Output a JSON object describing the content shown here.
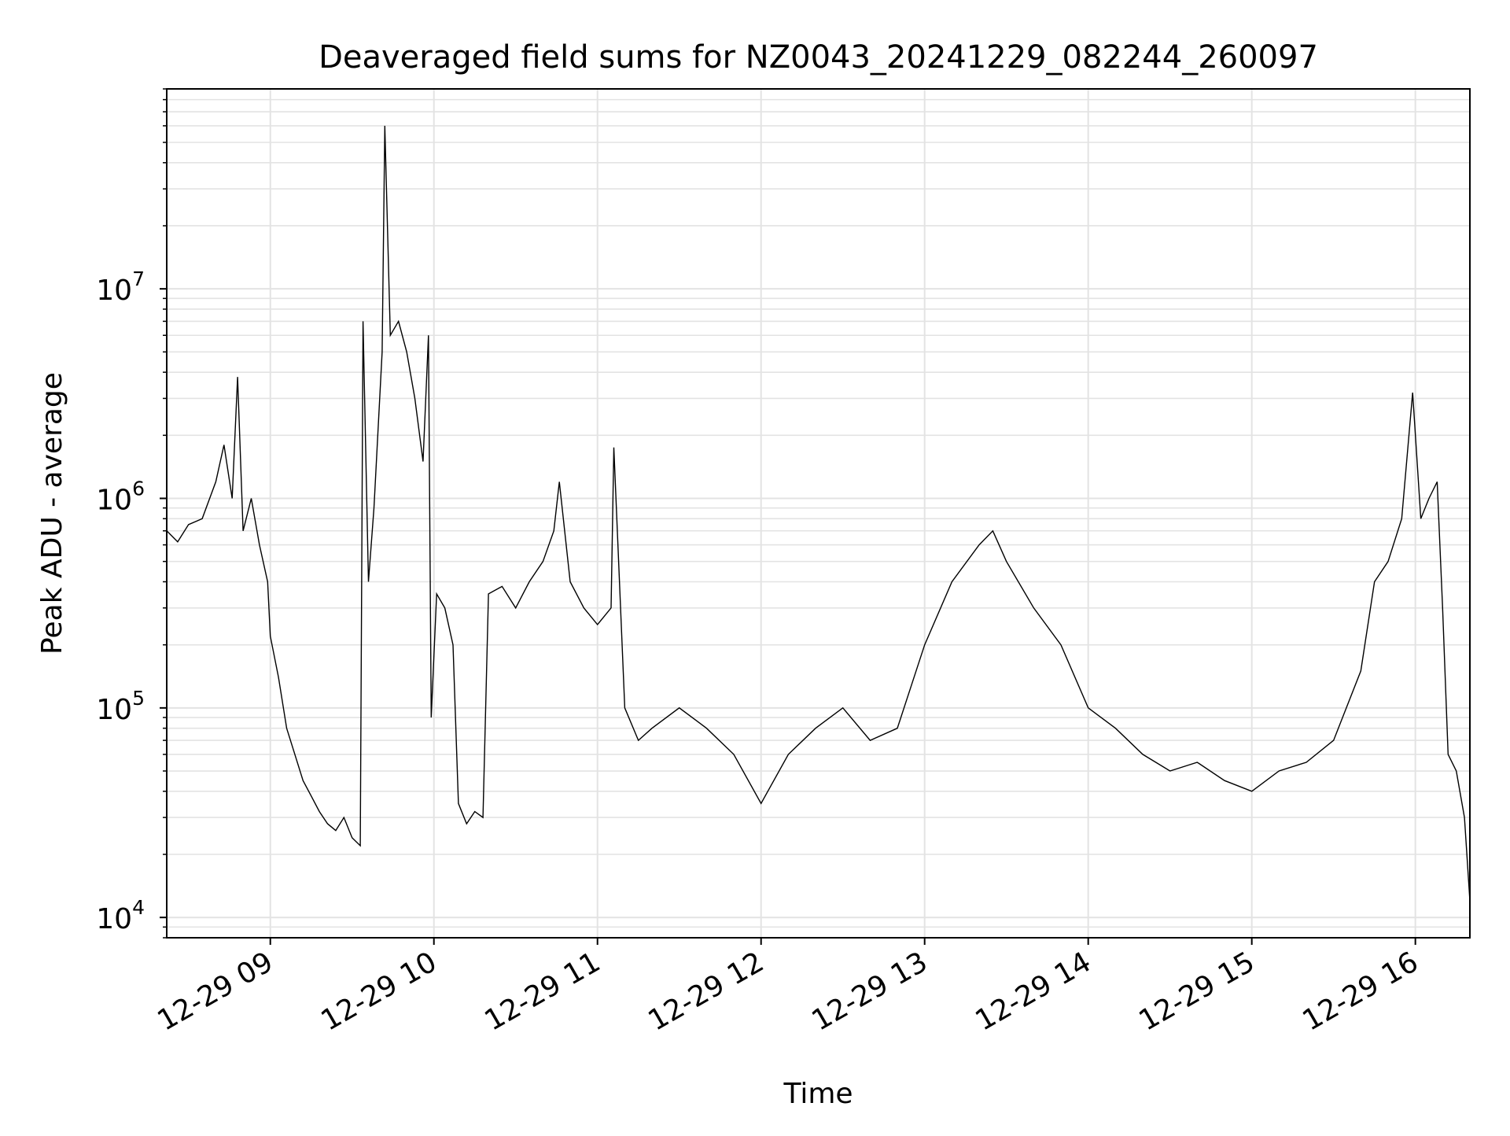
{
  "chart_data": {
    "type": "line",
    "title": "Deaveraged field sums for NZ0043_20241229_082244_260097",
    "xlabel": "Time",
    "ylabel": "Peak ADU - average",
    "y_scale": "log",
    "ylim": [
      8000,
      90000000
    ],
    "xlim": [
      "2024-12-29 08:22",
      "2024-12-29 16:20"
    ],
    "grid": "on (major and minor)",
    "line_color": "#000000",
    "grid_color": "#e3e3e3",
    "x_tick_labels": [
      "12-29 09",
      "12-29 10",
      "12-29 11",
      "12-29 12",
      "12-29 13",
      "12-29 14",
      "12-29 15",
      "12-29 16"
    ],
    "y_tick_labels": [
      {
        "base": "10",
        "exp": "4"
      },
      {
        "base": "10",
        "exp": "5"
      },
      {
        "base": "10",
        "exp": "6"
      },
      {
        "base": "10",
        "exp": "7"
      }
    ],
    "series": [
      {
        "values_description_note": null,
        "points": [
          [
            "2024-12-29 08:22",
            700000
          ],
          [
            "2024-12-29 08:26",
            620000
          ],
          [
            "2024-12-29 08:30",
            750000
          ],
          [
            "2024-12-29 08:35",
            800000
          ],
          [
            "2024-12-29 08:40",
            1200000
          ],
          [
            "2024-12-29 08:43",
            1800000
          ],
          [
            "2024-12-29 08:46",
            1000000
          ],
          [
            "2024-12-29 08:48",
            3800000
          ],
          [
            "2024-12-29 08:50",
            700000
          ],
          [
            "2024-12-29 08:53",
            1000000
          ],
          [
            "2024-12-29 08:56",
            600000
          ],
          [
            "2024-12-29 08:59",
            400000
          ],
          [
            "2024-12-29 09:00",
            220000
          ],
          [
            "2024-12-29 09:03",
            140000
          ],
          [
            "2024-12-29 09:06",
            80000
          ],
          [
            "2024-12-29 09:09",
            60000
          ],
          [
            "2024-12-29 09:12",
            45000
          ],
          [
            "2024-12-29 09:15",
            38000
          ],
          [
            "2024-12-29 09:18",
            32000
          ],
          [
            "2024-12-29 09:21",
            28000
          ],
          [
            "2024-12-29 09:24",
            26000
          ],
          [
            "2024-12-29 09:27",
            30000
          ],
          [
            "2024-12-29 09:30",
            24000
          ],
          [
            "2024-12-29 09:33",
            22000
          ],
          [
            "2024-12-29 09:34",
            7000000
          ],
          [
            "2024-12-29 09:36",
            400000
          ],
          [
            "2024-12-29 09:38",
            900000
          ],
          [
            "2024-12-29 09:41",
            5000000
          ],
          [
            "2024-12-29 09:42",
            60000000
          ],
          [
            "2024-12-29 09:44",
            6000000
          ],
          [
            "2024-12-29 09:47",
            7000000
          ],
          [
            "2024-12-29 09:50",
            5000000
          ],
          [
            "2024-12-29 09:53",
            3000000
          ],
          [
            "2024-12-29 09:56",
            1500000
          ],
          [
            "2024-12-29 09:58",
            6000000
          ],
          [
            "2024-12-29 09:59",
            90000
          ],
          [
            "2024-12-29 10:01",
            350000
          ],
          [
            "2024-12-29 10:04",
            300000
          ],
          [
            "2024-12-29 10:07",
            200000
          ],
          [
            "2024-12-29 10:09",
            35000
          ],
          [
            "2024-12-29 10:12",
            28000
          ],
          [
            "2024-12-29 10:15",
            32000
          ],
          [
            "2024-12-29 10:18",
            30000
          ],
          [
            "2024-12-29 10:20",
            350000
          ],
          [
            "2024-12-29 10:25",
            380000
          ],
          [
            "2024-12-29 10:30",
            300000
          ],
          [
            "2024-12-29 10:35",
            400000
          ],
          [
            "2024-12-29 10:40",
            500000
          ],
          [
            "2024-12-29 10:44",
            700000
          ],
          [
            "2024-12-29 10:46",
            1200000
          ],
          [
            "2024-12-29 10:50",
            400000
          ],
          [
            "2024-12-29 10:55",
            300000
          ],
          [
            "2024-12-29 11:00",
            250000
          ],
          [
            "2024-12-29 11:05",
            300000
          ],
          [
            "2024-12-29 11:06",
            1750000
          ],
          [
            "2024-12-29 11:10",
            100000
          ],
          [
            "2024-12-29 11:15",
            70000
          ],
          [
            "2024-12-29 11:20",
            80000
          ],
          [
            "2024-12-29 11:30",
            100000
          ],
          [
            "2024-12-29 11:40",
            80000
          ],
          [
            "2024-12-29 11:50",
            60000
          ],
          [
            "2024-12-29 12:00",
            35000
          ],
          [
            "2024-12-29 12:10",
            60000
          ],
          [
            "2024-12-29 12:20",
            80000
          ],
          [
            "2024-12-29 12:30",
            100000
          ],
          [
            "2024-12-29 12:40",
            70000
          ],
          [
            "2024-12-29 12:50",
            80000
          ],
          [
            "2024-12-29 13:00",
            200000
          ],
          [
            "2024-12-29 13:10",
            400000
          ],
          [
            "2024-12-29 13:20",
            600000
          ],
          [
            "2024-12-29 13:25",
            700000
          ],
          [
            "2024-12-29 13:30",
            500000
          ],
          [
            "2024-12-29 13:40",
            300000
          ],
          [
            "2024-12-29 13:50",
            200000
          ],
          [
            "2024-12-29 14:00",
            100000
          ],
          [
            "2024-12-29 14:10",
            80000
          ],
          [
            "2024-12-29 14:20",
            60000
          ],
          [
            "2024-12-29 14:30",
            50000
          ],
          [
            "2024-12-29 14:40",
            55000
          ],
          [
            "2024-12-29 14:50",
            45000
          ],
          [
            "2024-12-29 15:00",
            40000
          ],
          [
            "2024-12-29 15:10",
            50000
          ],
          [
            "2024-12-29 15:20",
            55000
          ],
          [
            "2024-12-29 15:30",
            70000
          ],
          [
            "2024-12-29 15:40",
            150000
          ],
          [
            "2024-12-29 15:45",
            400000
          ],
          [
            "2024-12-29 15:50",
            500000
          ],
          [
            "2024-12-29 15:55",
            800000
          ],
          [
            "2024-12-29 15:59",
            3200000
          ],
          [
            "2024-12-29 16:02",
            800000
          ],
          [
            "2024-12-29 16:05",
            1000000
          ],
          [
            "2024-12-29 16:08",
            1200000
          ],
          [
            "2024-12-29 16:10",
            300000
          ],
          [
            "2024-12-29 16:12",
            60000
          ],
          [
            "2024-12-29 16:15",
            50000
          ],
          [
            "2024-12-29 16:18",
            30000
          ],
          [
            "2024-12-29 16:20",
            12000
          ]
        ]
      }
    ]
  }
}
